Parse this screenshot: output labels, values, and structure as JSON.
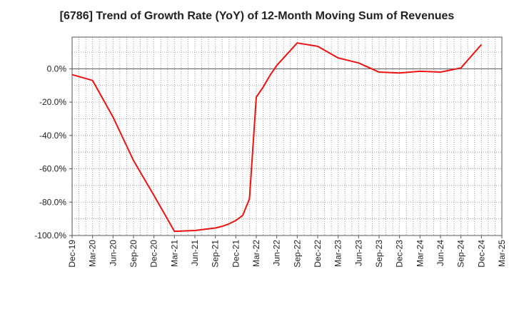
{
  "chart_data": {
    "type": "line",
    "title": "[6786]  Trend of Growth Rate (YoY) of 12-Month Moving Sum of Revenues",
    "xlabel": "",
    "ylabel": "",
    "x_tick_labels": [
      "Dec-19",
      "Mar-20",
      "Jun-20",
      "Sep-20",
      "Dec-20",
      "Mar-21",
      "Jun-21",
      "Sep-21",
      "Dec-21",
      "Mar-22",
      "Jun-22",
      "Sep-22",
      "Dec-22",
      "Mar-23",
      "Jun-23",
      "Sep-23",
      "Dec-23",
      "Mar-24",
      "Jun-24",
      "Sep-24",
      "Dec-24",
      "Mar-25"
    ],
    "y_ticks": [
      0,
      -20,
      -40,
      -60,
      -80,
      -100
    ],
    "y_tick_labels": [
      "0.0%",
      "-20.0%",
      "-40.0%",
      "-60.0%",
      "-80.0%",
      "-100.0%"
    ],
    "ylim": [
      -100,
      19
    ],
    "grid": true,
    "series": [
      {
        "name": "",
        "color": "#ee1111",
        "x": [
          "Dec-19",
          "Mar-20",
          "Jun-20",
          "Sep-20",
          "Dec-20",
          "Mar-21",
          "Jun-21",
          "Jul-21",
          "Aug-21",
          "Sep-21",
          "Oct-21",
          "Nov-21",
          "Dec-21",
          "Jan-22",
          "Feb-22",
          "Mar-22",
          "Apr-22",
          "May-22",
          "Jun-22",
          "Sep-22",
          "Dec-22",
          "Mar-23",
          "Jun-23",
          "Sep-23",
          "Dec-23",
          "Mar-24",
          "Jun-24",
          "Sep-24",
          "Dec-24"
        ],
        "values": [
          -3.5,
          -7,
          -29,
          -55,
          -76,
          -97.5,
          -97,
          -96.5,
          -96,
          -95.5,
          -94.5,
          -93,
          -91,
          -88,
          -78,
          -17,
          -11,
          -4,
          2,
          15.5,
          13.5,
          6.5,
          3.5,
          -2,
          -2.5,
          -1.5,
          -2,
          0.5,
          14.5
        ]
      }
    ]
  }
}
